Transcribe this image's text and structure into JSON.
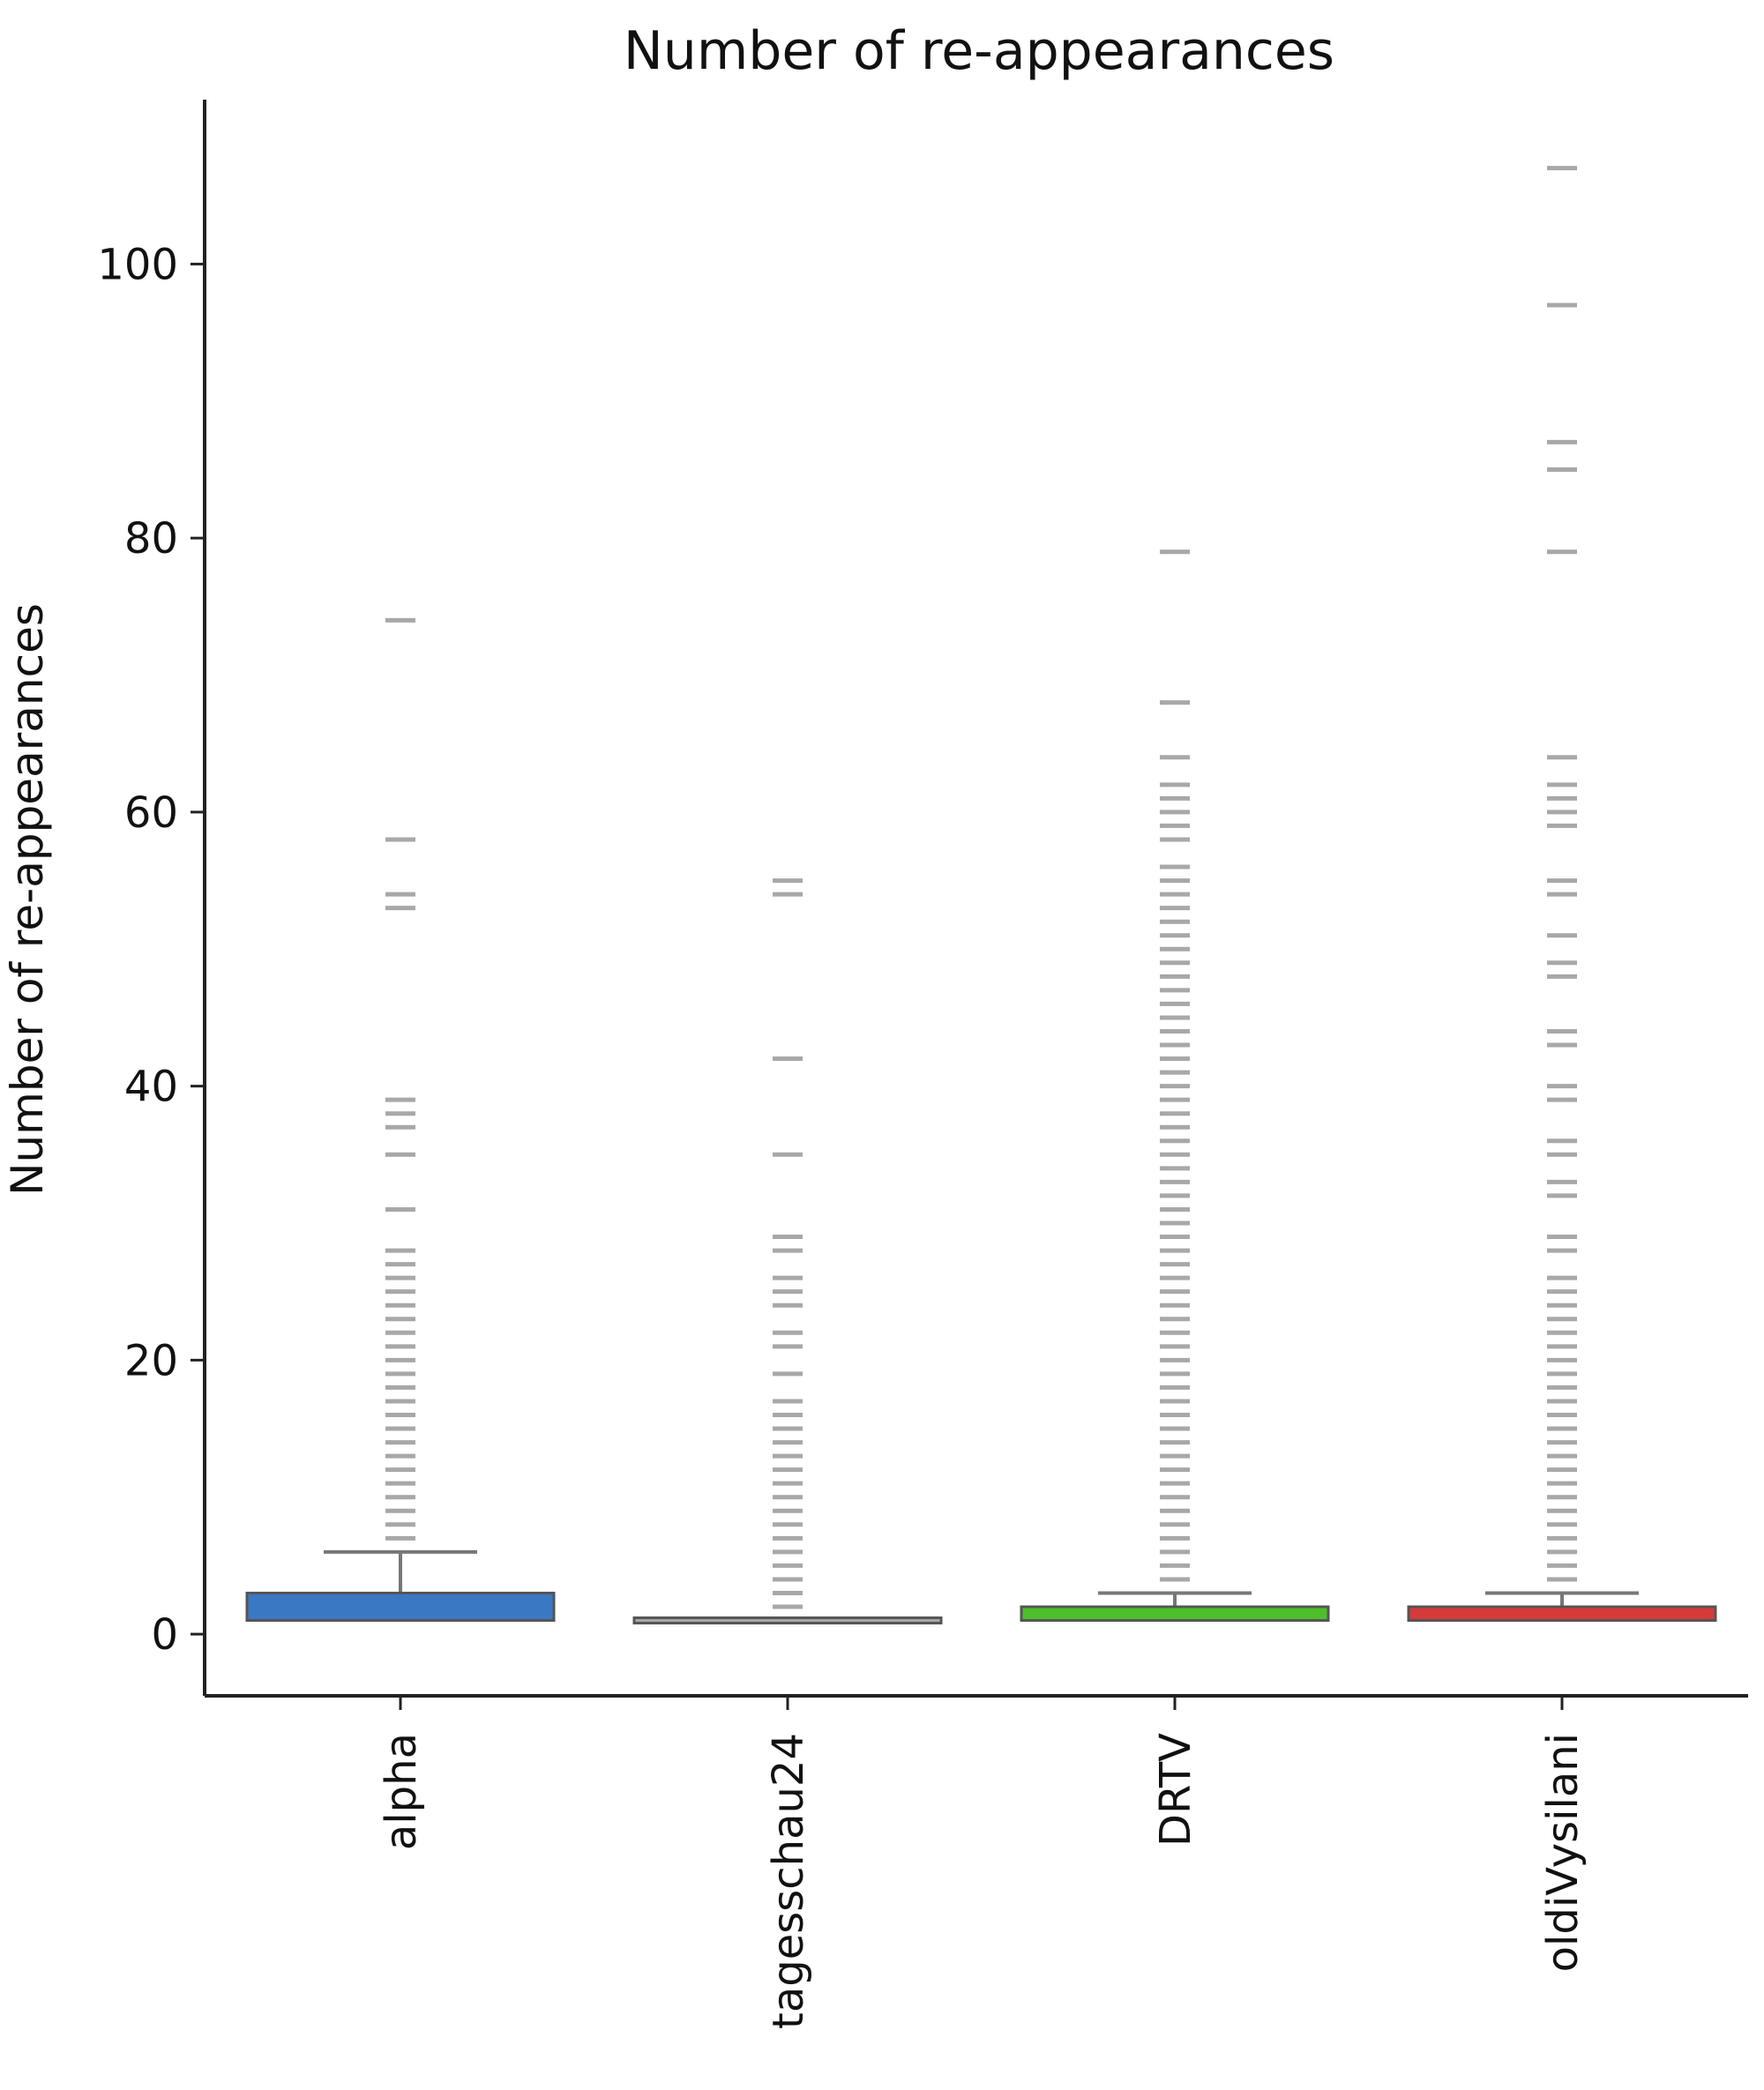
{
  "chart_data": {
    "type": "box",
    "title": "Number of re-appearances",
    "xlabel": "",
    "ylabel": "Number of re-appearances",
    "ylim": [
      -4.5,
      112
    ],
    "yticks": [
      0,
      20,
      40,
      60,
      80,
      100
    ],
    "grid": false,
    "legend": "none",
    "categories": [
      "alpha",
      "tagesschau24",
      "DRTV",
      "oldiVysilani"
    ],
    "series": [
      {
        "category": "alpha",
        "color": "#3a78c4",
        "box": {
          "q1": 1,
          "median": 1,
          "q3": 3,
          "whisker_low": 1,
          "whisker_high": 6
        },
        "outliers": [
          7,
          8,
          9,
          10,
          11,
          12,
          13,
          14,
          15,
          16,
          17,
          18,
          19,
          20,
          21,
          22,
          23,
          24,
          25,
          26,
          27,
          28,
          31,
          35,
          37,
          38,
          39,
          53,
          54,
          58,
          74
        ]
      },
      {
        "category": "tagesschau24",
        "color": "#a9a9a9",
        "box": {
          "q1": 1,
          "median": 1,
          "q3": 1,
          "whisker_low": 1,
          "whisker_high": 1
        },
        "outliers": [
          2,
          3,
          4,
          5,
          6,
          7,
          8,
          9,
          10,
          11,
          12,
          13,
          14,
          15,
          16,
          17,
          19,
          21,
          22,
          24,
          25,
          26,
          28,
          29,
          35,
          42,
          54,
          55
        ]
      },
      {
        "category": "DRTV",
        "color": "#4cbf2a",
        "box": {
          "q1": 1,
          "median": 1,
          "q3": 2,
          "whisker_low": 1,
          "whisker_high": 3
        },
        "outliers": [
          4,
          5,
          6,
          7,
          8,
          9,
          10,
          11,
          12,
          13,
          14,
          15,
          16,
          17,
          18,
          19,
          20,
          21,
          22,
          23,
          24,
          25,
          26,
          27,
          28,
          29,
          30,
          31,
          32,
          33,
          34,
          35,
          36,
          37,
          38,
          39,
          40,
          41,
          42,
          43,
          44,
          45,
          46,
          47,
          48,
          49,
          50,
          51,
          52,
          53,
          54,
          55,
          56,
          58,
          59,
          60,
          61,
          62,
          64,
          68,
          79
        ]
      },
      {
        "category": "oldiVysilani",
        "color": "#d63a3a",
        "box": {
          "q1": 1,
          "median": 1,
          "q3": 2,
          "whisker_low": 1,
          "whisker_high": 3
        },
        "outliers": [
          4,
          5,
          6,
          7,
          8,
          9,
          10,
          11,
          12,
          13,
          14,
          15,
          16,
          17,
          18,
          19,
          20,
          21,
          22,
          23,
          24,
          25,
          26,
          28,
          29,
          32,
          33,
          35,
          36,
          39,
          40,
          43,
          44,
          48,
          49,
          51,
          54,
          55,
          59,
          60,
          61,
          62,
          64,
          79,
          85,
          87,
          97,
          107
        ]
      }
    ]
  }
}
